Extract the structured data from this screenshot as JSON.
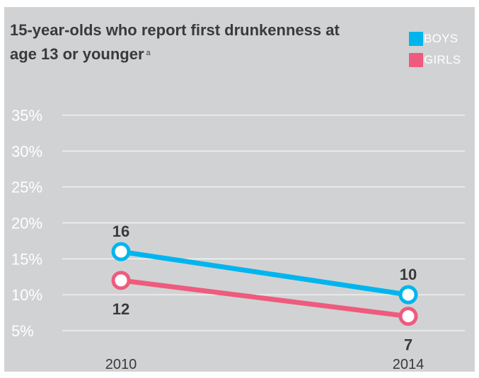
{
  "title": "15-year-olds who report first drunkenness at age 13 or younger",
  "title_superscript": "a",
  "legend": [
    {
      "label": "BOYS",
      "color": "#00b5ee"
    },
    {
      "label": "GIRLS",
      "color": "#ee5b7d"
    }
  ],
  "colors": {
    "background": "#d1d2d4",
    "gridline": "#ffffff",
    "text": "#3a3a3a"
  },
  "chart_data": {
    "type": "line",
    "title": "15-year-olds who report first drunkenness at age 13 or younger",
    "x": [
      "2010",
      "2014"
    ],
    "series": [
      {
        "name": "BOYS",
        "values": [
          16,
          10
        ],
        "color": "#00b5ee"
      },
      {
        "name": "GIRLS",
        "values": [
          12,
          7
        ],
        "color": "#ee5b7d"
      }
    ],
    "y_ticks": [
      5,
      10,
      15,
      20,
      25,
      30,
      35
    ],
    "y_tick_labels": [
      "5%",
      "10%",
      "15%",
      "20%",
      "25%",
      "30%",
      "35%"
    ],
    "ylim": [
      5,
      35
    ],
    "grid": true,
    "legend_position": "top-right",
    "xlabel": "",
    "ylabel": ""
  }
}
